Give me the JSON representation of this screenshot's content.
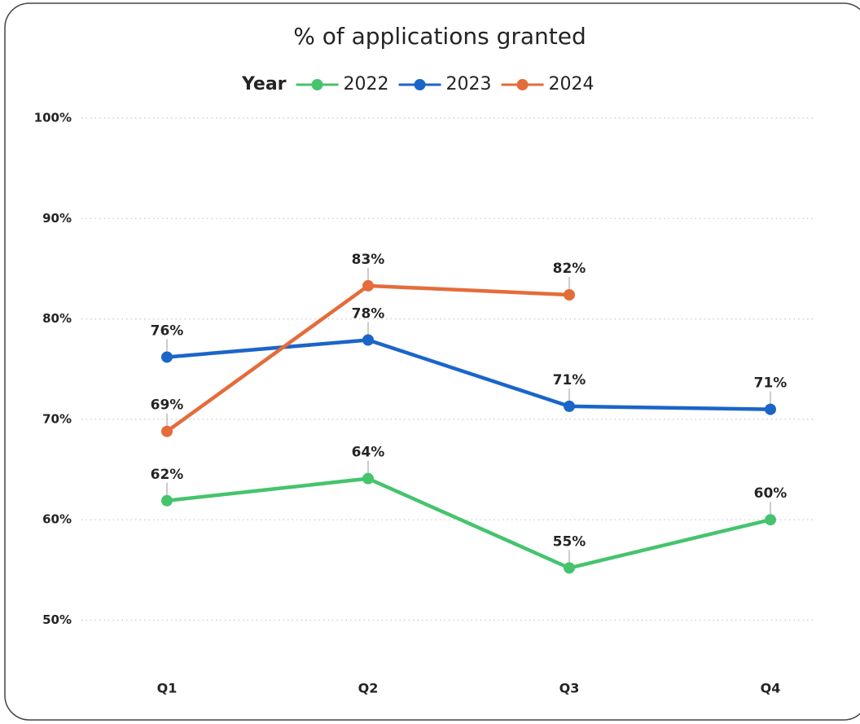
{
  "chart_data": {
    "type": "line",
    "title": "% of applications granted",
    "legend_title": "Year",
    "legend": "top",
    "grid": true,
    "categories": [
      "Q1",
      "Q2",
      "Q3",
      "Q4"
    ],
    "ylim": [
      45,
      100
    ],
    "yticks": [
      {
        "value": 50,
        "label": "50%"
      },
      {
        "value": 60,
        "label": "60%"
      },
      {
        "value": 70,
        "label": "70%"
      },
      {
        "value": 80,
        "label": "80%"
      },
      {
        "value": 90,
        "label": "90%"
      },
      {
        "value": 100,
        "label": "100%"
      }
    ],
    "series": [
      {
        "name": "2022",
        "color": "#45c46d",
        "values": [
          61.9,
          64.1,
          55.2,
          60.0
        ],
        "value_labels": [
          "62%",
          "64%",
          "55%",
          "60%"
        ]
      },
      {
        "name": "2023",
        "color": "#1b65c8",
        "values": [
          76.2,
          77.9,
          71.3,
          71.0
        ],
        "value_labels": [
          "76%",
          "78%",
          "71%",
          "71%"
        ]
      },
      {
        "name": "2024",
        "color": "#e46c3a",
        "values": [
          68.8,
          83.3,
          82.4,
          null
        ],
        "value_labels": [
          "69%",
          "83%",
          "82%",
          null
        ]
      }
    ]
  }
}
